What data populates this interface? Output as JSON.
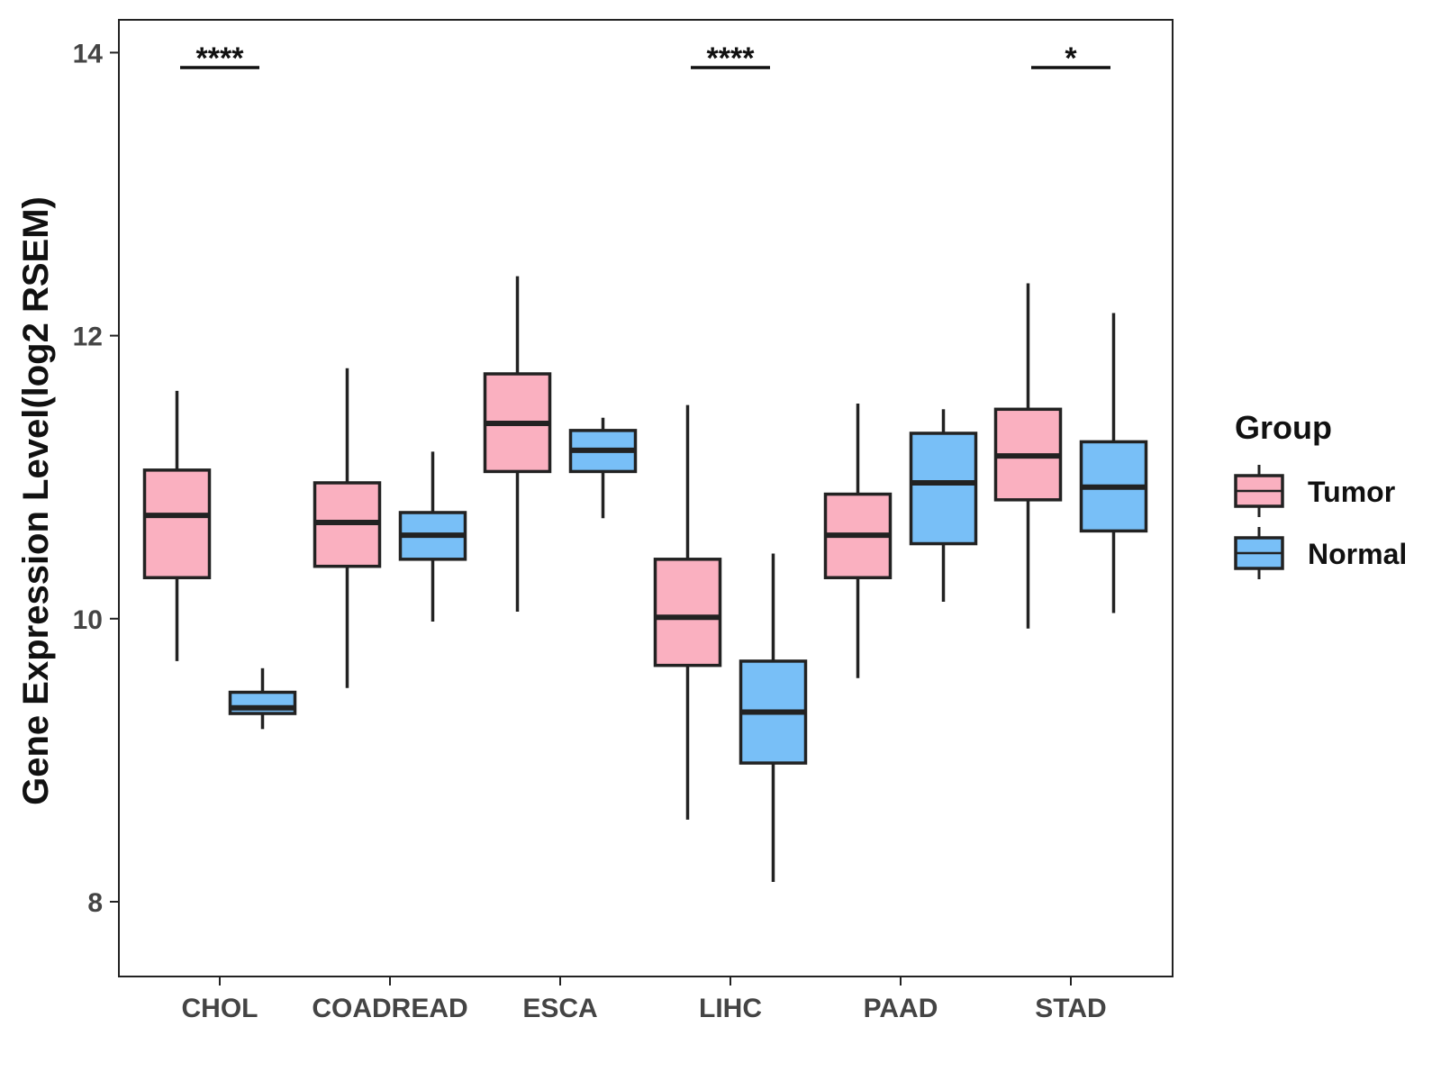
{
  "chart_data": {
    "type": "boxplot",
    "title": "",
    "xlabel": "",
    "ylabel": "Gene Expression Level(log2 RSEM)",
    "ylim": [
      7.4,
      14.2
    ],
    "yticks": [
      8,
      10,
      12,
      14
    ],
    "grid": false,
    "legend_position": "right",
    "legend_title": "Group",
    "categories": [
      "CHOL",
      "COADREAD",
      "ESCA",
      "LIHC",
      "PAAD",
      "STAD"
    ],
    "series": [
      {
        "name": "Tumor",
        "color": "#FAB0C0",
        "boxes": [
          {
            "min": 9.7,
            "q1": 10.29,
            "median": 10.73,
            "q3": 11.05,
            "max": 11.61
          },
          {
            "min": 9.51,
            "q1": 10.37,
            "median": 10.68,
            "q3": 10.96,
            "max": 11.77
          },
          {
            "min": 10.05,
            "q1": 11.04,
            "median": 11.38,
            "q3": 11.73,
            "max": 12.42
          },
          {
            "min": 8.58,
            "q1": 9.67,
            "median": 10.01,
            "q3": 10.42,
            "max": 11.51
          },
          {
            "min": 9.58,
            "q1": 10.29,
            "median": 10.59,
            "q3": 10.88,
            "max": 11.52
          },
          {
            "min": 9.93,
            "q1": 10.84,
            "median": 11.15,
            "q3": 11.48,
            "max": 12.37
          }
        ]
      },
      {
        "name": "Normal",
        "color": "#78BFF7",
        "boxes": [
          {
            "min": 9.22,
            "q1": 9.33,
            "median": 9.37,
            "q3": 9.48,
            "max": 9.65
          },
          {
            "min": 9.98,
            "q1": 10.42,
            "median": 10.59,
            "q3": 10.75,
            "max": 11.18
          },
          {
            "min": 10.71,
            "q1": 11.04,
            "median": 11.19,
            "q3": 11.33,
            "max": 11.42
          },
          {
            "min": 8.14,
            "q1": 8.98,
            "median": 9.34,
            "q3": 9.7,
            "max": 10.46
          },
          {
            "min": 10.12,
            "q1": 10.53,
            "median": 10.96,
            "q3": 11.31,
            "max": 11.48
          },
          {
            "min": 10.04,
            "q1": 10.62,
            "median": 10.93,
            "q3": 11.25,
            "max": 12.16
          }
        ]
      }
    ],
    "significance": [
      {
        "category": "CHOL",
        "label": "****"
      },
      {
        "category": "LIHC",
        "label": "****"
      },
      {
        "category": "STAD",
        "label": "*"
      }
    ]
  }
}
